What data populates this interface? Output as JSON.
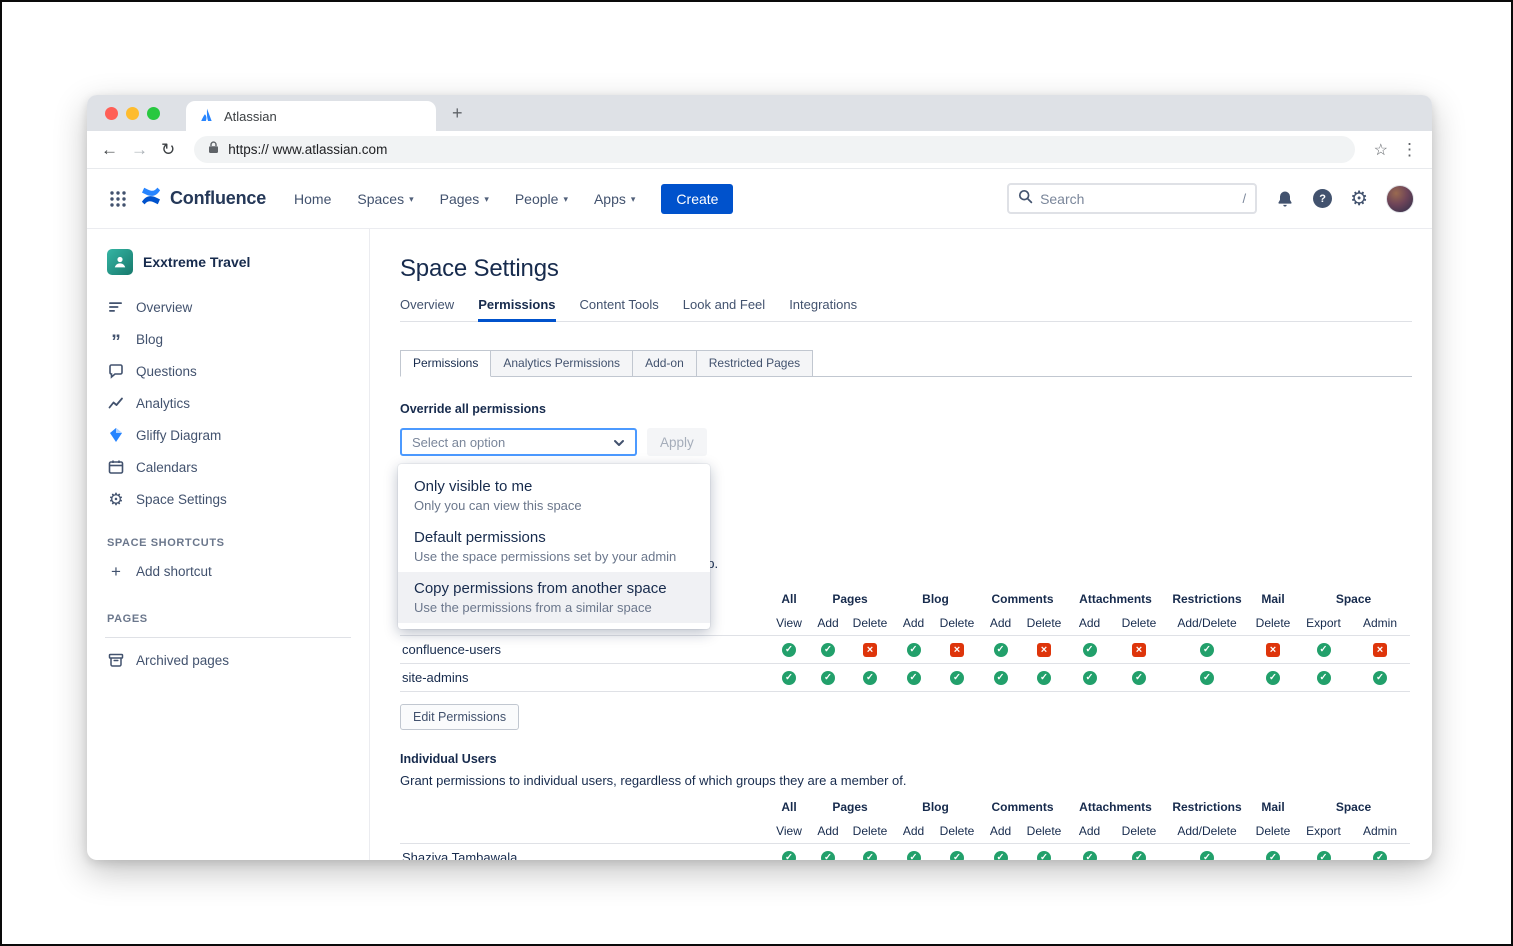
{
  "browser": {
    "tab_title": "Atlassian",
    "url": "https:// www.atlassian.com"
  },
  "icons": {
    "back": "←",
    "forward": "→",
    "reload": "↻",
    "star": "☆",
    "overflow": "⋮",
    "new_tab": "+",
    "gear": "⚙",
    "nav_caret": "▾",
    "help_mark": "?",
    "blog_quote": "”",
    "add_plus": "+"
  },
  "app_header": {
    "product_name": "Confluence",
    "nav_items": [
      "Home",
      "Spaces",
      "Pages",
      "People",
      "Apps"
    ],
    "create_label": "Create",
    "search_placeholder": "Search",
    "search_shortcut": "/"
  },
  "sidebar": {
    "space_name": "Exxtreme Travel",
    "items": [
      "Overview",
      "Blog",
      "Questions",
      "Analytics",
      "Gliffy Diagram",
      "Calendars",
      "Space Settings"
    ],
    "shortcuts_heading": "SPACE SHORTCUTS",
    "add_shortcut_label": "Add shortcut",
    "pages_heading": "PAGES",
    "archived_pages_label": "Archived pages"
  },
  "main": {
    "page_title": "Space Settings",
    "tabs": [
      "Overview",
      "Permissions",
      "Content Tools",
      "Look and Feel",
      "Integrations"
    ],
    "subtabs": [
      "Permissions",
      "Analytics Permissions",
      "Add-on",
      "Restricted Pages"
    ],
    "override_label": "Override all permissions",
    "select_placeholder": "Select an option",
    "apply_label": "Apply",
    "dropdown_options": [
      {
        "title": "Only visible to me",
        "desc": "Only you can view this space"
      },
      {
        "title": "Default permissions",
        "desc": "Use the space permissions set by your admin"
      },
      {
        "title": "Copy permissions from another space",
        "desc": "Use the permissions from a similar space"
      }
    ],
    "obscured_fragment": "up.",
    "perm_table": {
      "group_headers": [
        "All",
        "Pages",
        "Blog",
        "Comments",
        "Attachments",
        "Restrictions",
        "Mail",
        "Space"
      ],
      "sub_headers": [
        "View",
        "Add",
        "Delete",
        "Add",
        "Delete",
        "Add",
        "Delete",
        "Add",
        "Delete",
        "Add/Delete",
        "Delete",
        "Export",
        "Admin"
      ],
      "granted_glyph": "✓",
      "denied_glyph": "×"
    },
    "groups_table": {
      "rows": [
        {
          "name": "confluence-users",
          "perms": [
            "granted",
            "granted",
            "denied",
            "granted",
            "denied",
            "granted",
            "denied",
            "granted",
            "denied",
            "granted",
            "denied",
            "granted",
            "denied"
          ]
        },
        {
          "name": "site-admins",
          "perms": [
            "granted",
            "granted",
            "granted",
            "granted",
            "granted",
            "granted",
            "granted",
            "granted",
            "granted",
            "granted",
            "granted",
            "granted",
            "granted"
          ]
        }
      ],
      "edit_button_label": "Edit Permissions"
    },
    "individual_users": {
      "heading": "Individual Users",
      "caption": "Grant permissions to individual users, regardless of which groups they are a member of.",
      "rows": [
        {
          "name": "Shaziya Tambawala",
          "perms": [
            "granted",
            "granted",
            "granted",
            "granted",
            "granted",
            "granted",
            "granted",
            "granted",
            "granted",
            "granted",
            "granted",
            "granted",
            "granted"
          ]
        }
      ]
    }
  }
}
